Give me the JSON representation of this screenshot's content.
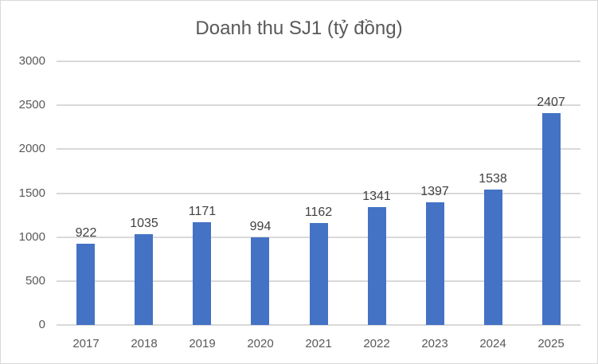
{
  "chart_data": {
    "type": "bar",
    "title": "Doanh thu SJ1 (tỷ đồng)",
    "categories": [
      "2017",
      "2018",
      "2019",
      "2020",
      "2021",
      "2022",
      "2023",
      "2024",
      "2025"
    ],
    "values": [
      922,
      1035,
      1171,
      994,
      1162,
      1341,
      1397,
      1538,
      2407
    ],
    "data_labels": [
      "922",
      "1035",
      "1171",
      "994",
      "1162",
      "1341",
      "1397",
      "1538",
      "2407"
    ],
    "xlabel": "",
    "ylabel": "",
    "ylim": [
      0,
      3000
    ],
    "ytick_interval": 500,
    "yticks": [
      "0",
      "500",
      "1000",
      "1500",
      "2000",
      "2500",
      "3000"
    ],
    "grid": true,
    "legend_position": "none",
    "colors": {
      "bar": "#4472C4",
      "gridline": "#d9d9d9",
      "axis_text": "#595959",
      "data_label_text": "#404040",
      "title_text": "#595959",
      "frame_border": "#d9d9d9",
      "background": "#ffffff"
    }
  }
}
